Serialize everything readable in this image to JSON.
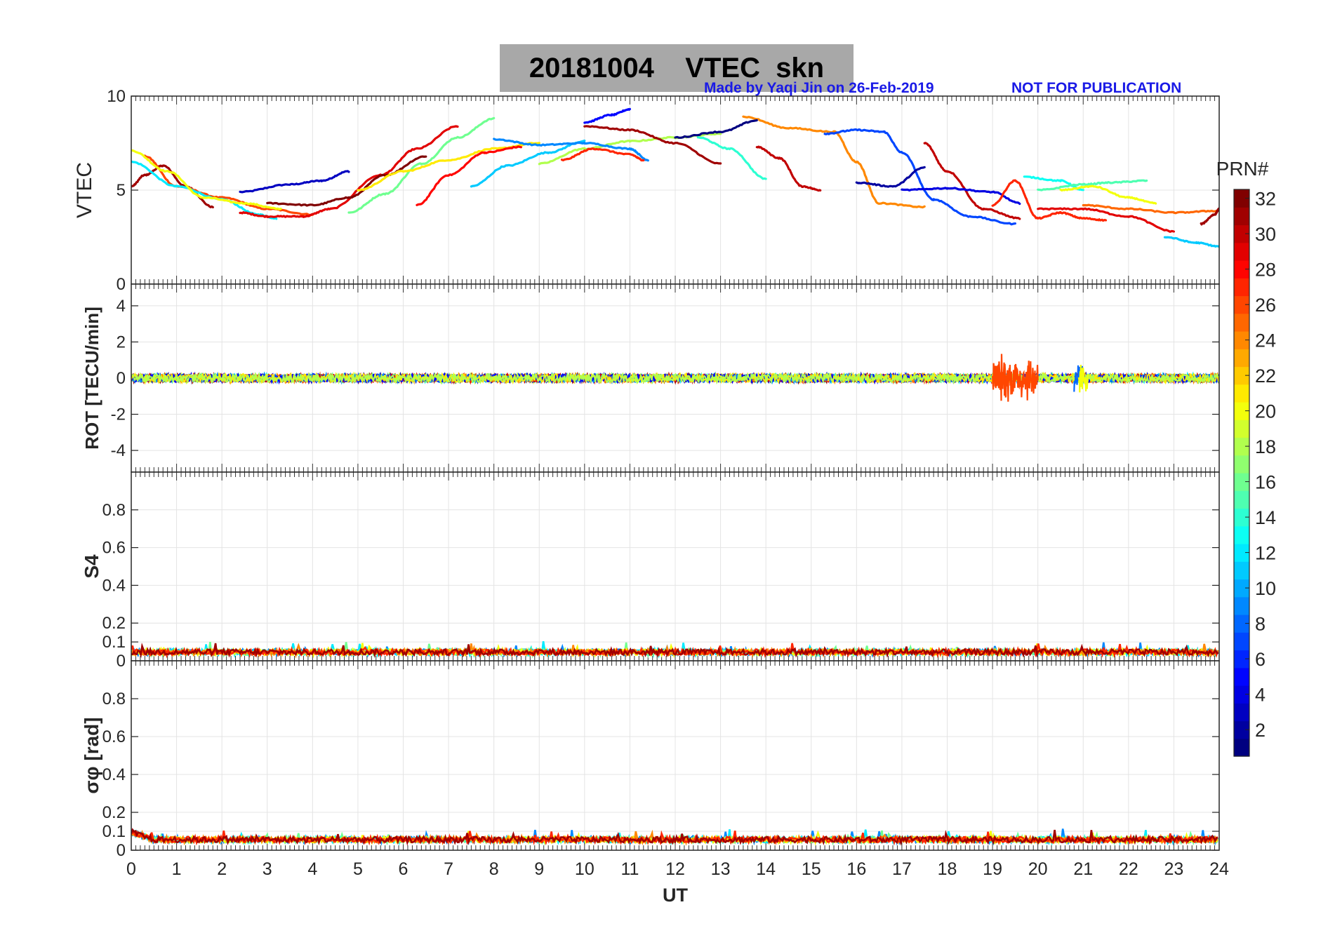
{
  "title": {
    "date": "20181004",
    "product": "VTEC  skn"
  },
  "credit": "Made by Yaqi Jin on 26-Feb-2019",
  "watermark": "NOT FOR PUBLICATION",
  "colorbar": {
    "label": "PRN#",
    "min": 1,
    "max": 32,
    "ticks": [
      "2",
      "4",
      "6",
      "8",
      "10",
      "12",
      "14",
      "16",
      "18",
      "20",
      "22",
      "24",
      "26",
      "28",
      "30",
      "32"
    ],
    "colormap": "jet"
  },
  "chart_data": [
    {
      "type": "line",
      "ylabel": "VTEC",
      "ylim": [
        0,
        10
      ],
      "yticks": [
        "0",
        "5",
        "10"
      ],
      "xlim": [
        0,
        24
      ],
      "grid": true,
      "series": [
        {
          "prn": 3,
          "x": [
            2.4,
            3.5,
            4.2,
            4.8
          ],
          "y": [
            4.9,
            5.3,
            5.5,
            6.0
          ]
        },
        {
          "prn": 31,
          "x": [
            0,
            0.3,
            0.7,
            1.2,
            1.8
          ],
          "y": [
            5.2,
            5.8,
            6.3,
            5.2,
            4.1
          ]
        },
        {
          "prn": 26,
          "x": [
            0.3,
            1.0,
            2.0,
            3.0,
            4.0
          ],
          "y": [
            6.8,
            5.2,
            4.6,
            4.0,
            3.7
          ]
        },
        {
          "prn": 12,
          "x": [
            0,
            1.0,
            2.0,
            2.8,
            3.2
          ],
          "y": [
            6.5,
            5.2,
            4.5,
            3.7,
            3.5
          ]
        },
        {
          "prn": 20,
          "x": [
            0,
            0.8,
            1.6,
            2.5,
            3.3
          ],
          "y": [
            7.1,
            6.0,
            4.6,
            4.3,
            4.0
          ]
        },
        {
          "prn": 29,
          "x": [
            2.4,
            3.0,
            3.8,
            4.4,
            5.5,
            6.3,
            7.2
          ],
          "y": [
            3.8,
            3.6,
            3.6,
            4.0,
            5.8,
            7.2,
            8.4
          ]
        },
        {
          "prn": 32,
          "x": [
            3.0,
            4.0,
            4.8,
            5.6,
            6.5
          ],
          "y": [
            4.3,
            4.2,
            4.6,
            5.8,
            6.8
          ]
        },
        {
          "prn": 16,
          "x": [
            4.8,
            5.6,
            6.4,
            7.2,
            8.0
          ],
          "y": [
            3.8,
            4.8,
            6.4,
            7.8,
            8.8
          ]
        },
        {
          "prn": 21,
          "x": [
            5.0,
            6.0,
            7.0,
            8.0,
            9.0
          ],
          "y": [
            5.0,
            6.0,
            6.6,
            7.2,
            7.5
          ]
        },
        {
          "prn": 28,
          "x": [
            6.3,
            7.0,
            7.8,
            8.6
          ],
          "y": [
            4.2,
            5.8,
            7.0,
            7.3
          ]
        },
        {
          "prn": 11,
          "x": [
            7.5,
            8.3,
            9.2,
            10.0
          ],
          "y": [
            5.2,
            6.3,
            7.0,
            7.6
          ]
        },
        {
          "prn": 18,
          "x": [
            9.0,
            10.0,
            11.0,
            12.0,
            13.0
          ],
          "y": [
            6.4,
            7.2,
            7.6,
            7.8,
            8.0
          ]
        },
        {
          "prn": 9,
          "x": [
            8.0,
            9.0,
            10.0,
            11.0,
            11.4
          ],
          "y": [
            7.7,
            7.4,
            7.5,
            7.2,
            6.6
          ]
        },
        {
          "prn": 5,
          "x": [
            10.0,
            10.6,
            11.0
          ],
          "y": [
            8.6,
            9.0,
            9.3
          ]
        },
        {
          "prn": 31,
          "x": [
            10.0,
            11.0,
            12.0,
            13.0
          ],
          "y": [
            8.4,
            8.2,
            7.5,
            6.4
          ]
        },
        {
          "prn": 27,
          "x": [
            9.5,
            10.2,
            11.0,
            11.3
          ],
          "y": [
            6.6,
            7.2,
            6.9,
            6.6
          ]
        },
        {
          "prn": 24,
          "x": [
            13.5,
            14.5,
            15.5,
            16.0,
            16.5,
            17.5
          ],
          "y": [
            8.9,
            8.3,
            8.1,
            6.5,
            4.3,
            4.1
          ]
        },
        {
          "prn": 14,
          "x": [
            12.5,
            13.2,
            14.0
          ],
          "y": [
            7.8,
            7.2,
            5.6
          ]
        },
        {
          "prn": 1,
          "x": [
            12.0,
            13.0,
            13.8
          ],
          "y": [
            7.8,
            8.1,
            8.7
          ]
        },
        {
          "prn": 30,
          "x": [
            13.8,
            14.3,
            14.8,
            15.2
          ],
          "y": [
            7.3,
            6.7,
            5.2,
            5.0
          ]
        },
        {
          "prn": 7,
          "x": [
            15.3,
            16.0,
            16.6,
            17.0,
            17.7,
            18.5,
            19.5
          ],
          "y": [
            8.0,
            8.2,
            8.1,
            7.0,
            4.5,
            3.6,
            3.2
          ]
        },
        {
          "prn": 2,
          "x": [
            16.0,
            16.8,
            17.5
          ],
          "y": [
            5.4,
            5.2,
            6.2
          ]
        },
        {
          "prn": 30,
          "x": [
            17.5,
            18.0,
            18.8,
            19.6
          ],
          "y": [
            7.5,
            6.0,
            4.0,
            3.5
          ]
        },
        {
          "prn": 4,
          "x": [
            17.0,
            18.0,
            19.0,
            19.6
          ],
          "y": [
            5.0,
            5.1,
            4.9,
            4.3
          ]
        },
        {
          "prn": 27,
          "x": [
            19.0,
            19.5,
            20.0,
            20.5,
            21.0,
            21.5
          ],
          "y": [
            4.2,
            5.5,
            3.5,
            3.8,
            3.5,
            3.4
          ]
        },
        {
          "prn": 13,
          "x": [
            19.7,
            20.5,
            21.0
          ],
          "y": [
            5.7,
            5.5,
            5.0
          ]
        },
        {
          "prn": 15,
          "x": [
            20.0,
            21.0,
            21.6,
            22.4
          ],
          "y": [
            5.0,
            5.3,
            5.4,
            5.5
          ]
        },
        {
          "prn": 20,
          "x": [
            20.5,
            21.2,
            22.0,
            22.6
          ],
          "y": [
            5.0,
            5.2,
            4.6,
            4.3
          ]
        },
        {
          "prn": 29,
          "x": [
            20.0,
            21.0,
            22.0,
            23.0
          ],
          "y": [
            4.0,
            4.0,
            3.6,
            2.8
          ]
        },
        {
          "prn": 25,
          "x": [
            21.0,
            22.0,
            23.0,
            24.0
          ],
          "y": [
            4.2,
            4.0,
            3.8,
            3.9
          ]
        },
        {
          "prn": 11,
          "x": [
            22.8,
            23.5,
            24.0
          ],
          "y": [
            2.5,
            2.2,
            2.0
          ]
        },
        {
          "prn": 31,
          "x": [
            23.6,
            23.9,
            24.0
          ],
          "y": [
            3.2,
            3.7,
            4.0
          ]
        }
      ]
    },
    {
      "type": "line",
      "ylabel": "ROT [TECU/min]",
      "ylim": [
        -5.2,
        5.2
      ],
      "yticks": [
        "-4",
        "-2",
        "0",
        "2",
        "4"
      ],
      "xlim": [
        0,
        24
      ],
      "grid": true,
      "description_of_values": "all PRNs fluctuate near 0 (about ±0.3 TECU/min) from 0 to 24 UT",
      "bursts": [
        {
          "prn": 26,
          "x_range": [
            19.0,
            20.0
          ],
          "amplitude": 1.5
        },
        {
          "prn": 8,
          "x_range": [
            20.8,
            21.0
          ],
          "amplitude": 1.1
        },
        {
          "prn": 20,
          "x_range": [
            20.9,
            21.1
          ],
          "amplitude": 1.1
        }
      ]
    },
    {
      "type": "line",
      "ylabel": "S4",
      "ylim": [
        0,
        1
      ],
      "yticks": [
        "0",
        "0.1",
        "0.2",
        "0.4",
        "0.6",
        "0.8"
      ],
      "xlim": [
        0,
        24
      ],
      "grid": true,
      "baseline": 0.04,
      "spread": 0.03
    },
    {
      "type": "line",
      "ylabel": "σφ [rad]",
      "ylim": [
        0,
        1
      ],
      "yticks": [
        "0",
        "0.1",
        "0.2",
        "0.4",
        "0.6",
        "0.8"
      ],
      "xlim": [
        0,
        24
      ],
      "grid": true,
      "baseline": 0.05,
      "spread": 0.03
    }
  ],
  "xaxis": {
    "label": "UT",
    "ticks": [
      "0",
      "1",
      "2",
      "3",
      "4",
      "5",
      "6",
      "7",
      "8",
      "9",
      "10",
      "11",
      "12",
      "13",
      "14",
      "15",
      "16",
      "17",
      "18",
      "19",
      "20",
      "21",
      "22",
      "23",
      "24"
    ]
  }
}
